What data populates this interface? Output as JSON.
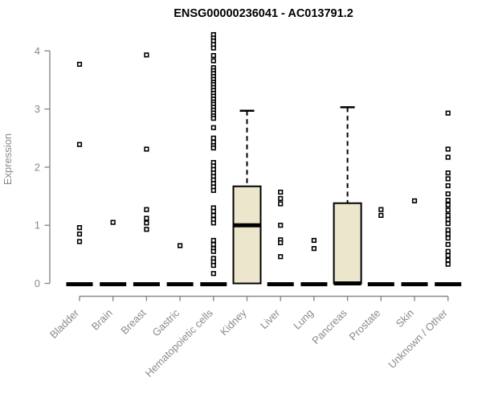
{
  "title": "ENSG00000236041 - AC013791.2",
  "chart_data": {
    "type": "boxplot",
    "title": "ENSG00000236041 - AC013791.2",
    "xlabel": "",
    "ylabel": "Expression",
    "ylim": [
      0,
      4.3
    ],
    "yticks": [
      0,
      1,
      2,
      3,
      4
    ],
    "grid": false,
    "legend": "none",
    "marker": "open-square",
    "colors": {
      "axis": "#8a8a8a",
      "tick_label": "#8a8a8a",
      "title": "#000000",
      "box_fill": "#ece7cc",
      "box_stroke": "#000000",
      "point_fill": "#ffffff",
      "point_stroke": "#000000"
    },
    "categories": [
      "Bladder",
      "Brain",
      "Breast",
      "Gastric",
      "Hematopoietic cells",
      "Kidney",
      "Liver",
      "Lung",
      "Pancreas",
      "Prostate",
      "Skin",
      "Unknown / Other"
    ],
    "series": [
      {
        "category": "Bladder",
        "zero_bar": true,
        "points": [
          3.77,
          2.39,
          0.96,
          0.85,
          0.72
        ]
      },
      {
        "category": "Brain",
        "zero_bar": true,
        "points": [
          1.05
        ]
      },
      {
        "category": "Breast",
        "zero_bar": true,
        "points": [
          3.93,
          2.31,
          1.27,
          1.12,
          1.04,
          0.93
        ]
      },
      {
        "category": "Gastric",
        "zero_bar": true,
        "points": [
          0.65
        ]
      },
      {
        "category": "Hematopoietic cells",
        "zero_bar": true,
        "points": [
          4.28,
          4.22,
          4.17,
          4.11,
          4.05,
          3.92,
          3.83,
          3.71,
          3.66,
          3.61,
          3.56,
          3.51,
          3.46,
          3.42,
          3.37,
          3.32,
          3.27,
          3.22,
          3.17,
          3.12,
          3.08,
          3.03,
          2.98,
          2.93,
          2.88,
          2.84,
          2.68,
          2.5,
          2.43,
          2.37,
          2.33,
          2.08,
          2.02,
          1.96,
          1.9,
          1.84,
          1.78,
          1.72,
          1.66,
          1.6,
          1.3,
          1.24,
          1.17,
          1.1,
          1.04,
          0.74,
          0.67,
          0.6,
          0.55,
          0.43,
          0.37,
          0.31,
          0.17
        ]
      },
      {
        "category": "Kidney",
        "zero_bar": false,
        "box": {
          "whisker_high": 2.97,
          "q3": 1.67,
          "median": 1.0,
          "q1": 0,
          "whisker_low": 0
        },
        "points": []
      },
      {
        "category": "Liver",
        "zero_bar": true,
        "points": [
          1.57,
          1.46,
          1.37,
          1.0,
          0.75,
          0.7,
          0.46
        ]
      },
      {
        "category": "Lung",
        "zero_bar": true,
        "points": [
          0.74,
          0.6
        ]
      },
      {
        "category": "Pancreas",
        "zero_bar": false,
        "box": {
          "whisker_high": 3.03,
          "q3": 1.38,
          "median": 0,
          "q1": 0,
          "whisker_low": 0
        },
        "points": []
      },
      {
        "category": "Prostate",
        "zero_bar": true,
        "points": [
          1.27,
          1.17
        ]
      },
      {
        "category": "Skin",
        "zero_bar": true,
        "points": [
          1.42
        ]
      },
      {
        "category": "Unknown / Other",
        "zero_bar": true,
        "points": [
          2.93,
          2.31,
          2.17,
          1.9,
          1.8,
          1.68,
          1.54,
          1.43,
          1.35,
          1.26,
          1.17,
          1.1,
          1.03,
          0.92,
          0.85,
          0.78,
          0.67,
          0.55,
          0.48,
          0.4,
          0.33
        ]
      }
    ]
  }
}
